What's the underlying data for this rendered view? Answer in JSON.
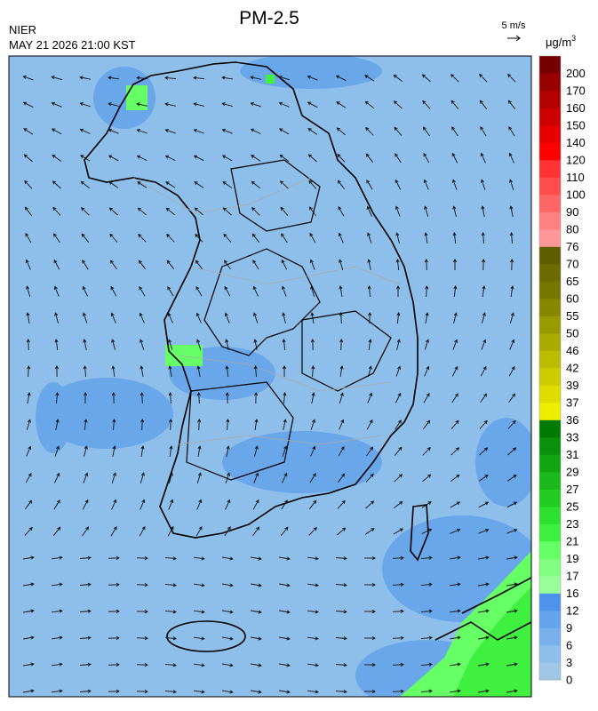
{
  "header": {
    "title": "PM-2.5",
    "agency": "NIER",
    "timestamp": "MAY 21 2026 21:00 KST"
  },
  "wind_scale": {
    "label": "5 m/s"
  },
  "colorbar": {
    "unit": "μg/m",
    "unit_sup": "3",
    "levels": [
      0,
      3,
      6,
      9,
      12,
      16,
      17,
      19,
      21,
      23,
      25,
      27,
      29,
      31,
      33,
      36,
      37,
      39,
      42,
      46,
      50,
      55,
      60,
      65,
      70,
      76,
      80,
      90,
      100,
      110,
      120,
      140,
      150,
      160,
      170,
      200
    ],
    "colors": [
      "#a0c8e6",
      "#8ebfea",
      "#78b0ec",
      "#64a3ee",
      "#4d93ec",
      "#99ff99",
      "#80ff80",
      "#66ff66",
      "#40f040",
      "#2ee02e",
      "#22cc22",
      "#1bb81b",
      "#12a512",
      "#0a900a",
      "#007a00",
      "#eeee00",
      "#dddd00",
      "#cccc00",
      "#bbbb00",
      "#aaaa00",
      "#999900",
      "#888800",
      "#777700",
      "#6b6b00",
      "#5e5e00",
      "#ff9999",
      "#ff8080",
      "#ff6666",
      "#ff4d4d",
      "#ff3333",
      "#ff0000",
      "#e60000",
      "#cc0000",
      "#b30000",
      "#990000",
      "#770000"
    ]
  }
}
